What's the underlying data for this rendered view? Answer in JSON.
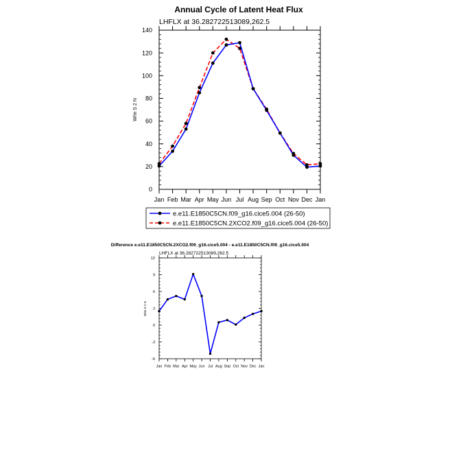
{
  "chart_data": [
    {
      "type": "line",
      "title": "Annual Cycle of Latent Heat Flux",
      "subtitle": "LHFLX at 36.282722513089,262.5",
      "xlabel": "",
      "ylabel": "W/m S 2 N",
      "categories": [
        "Jan",
        "Feb",
        "Mar",
        "Apr",
        "May",
        "Jun",
        "Jul",
        "Aug",
        "Sep",
        "Oct",
        "Nov",
        "Dec",
        "Jan"
      ],
      "ylim": [
        0,
        140
      ],
      "yticks": [
        0,
        20,
        40,
        60,
        80,
        100,
        120,
        140
      ],
      "grid": false,
      "legend_position": "below",
      "series": [
        {
          "name": "e.e11.E1850C5CN.f09_g16.cice5.004 (26-50)",
          "color": "#0000ff",
          "dash": "solid",
          "values": [
            20.5,
            33.5,
            53,
            85,
            111,
            127,
            129,
            88.5,
            69.5,
            49.5,
            30,
            19.5,
            20.5
          ]
        },
        {
          "name": "e.e11.E1850C5CN.2XCO2.f09_g16.cice5.004 (26-50)",
          "color": "#ff0000",
          "dash": "dashed",
          "values": [
            22.5,
            38,
            58,
            89.5,
            120,
            132,
            124,
            88.5,
            70.5,
            49.5,
            31.5,
            21.5,
            22.5
          ]
        }
      ]
    },
    {
      "type": "line",
      "title": "Difference e.e11.E1850C5CN.2XCO2.f09_g16.cice5.004 - e.e11.E1850C5CN.f09_g16.cice5.004",
      "subtitle": "LHFLX at 36.282722513089,262.5",
      "xlabel": "",
      "ylabel": "W/m S 2 N",
      "categories": [
        "Jan",
        "Feb",
        "Mar",
        "Apr",
        "May",
        "Jun",
        "Jul",
        "Aug",
        "Sep",
        "Oct",
        "Nov",
        "Dec",
        "Jan"
      ],
      "ylim": [
        -6,
        12
      ],
      "yticks": [
        -6,
        -3,
        0,
        3,
        6,
        9,
        12
      ],
      "grid": false,
      "series": [
        {
          "name": "",
          "color": "#0000ff",
          "dash": "solid",
          "values": [
            2.5,
            4.6,
            5.2,
            4.6,
            9.1,
            5.2,
            -5.1,
            0.5,
            0.9,
            0.1,
            1.3,
            2.0,
            2.5
          ]
        }
      ]
    }
  ]
}
